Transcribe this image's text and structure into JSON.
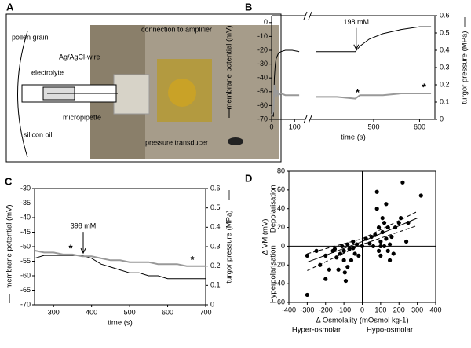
{
  "panel_labels": [
    "A",
    "B",
    "C",
    "D"
  ],
  "panel_a": {
    "labels": [
      "pollen grain",
      "electrolyte",
      "Ag/AgCl-wire",
      "micropipette",
      "silicon oil",
      "connection to amplifier",
      "pressure transducer"
    ]
  },
  "chart_data": [
    {
      "type": "line",
      "x_label": "time (s)",
      "y_label": "membrane potential (mV)",
      "y2_label": "turgor pressure (MPa)",
      "xlim": [
        0,
        630
      ],
      "x_break": [
        130,
        370
      ],
      "xticks": [
        0,
        100,
        500,
        600
      ],
      "ylim": [
        -70,
        5
      ],
      "yticks": [
        -70,
        -60,
        -50,
        -40,
        -30,
        -20,
        -10,
        0
      ],
      "y2lim": [
        0,
        0.6
      ],
      "y2ticks": [
        0,
        0.1,
        0.2,
        0.3,
        0.4,
        0.5,
        0.6
      ],
      "x": [
        0,
        8,
        12,
        16,
        20,
        25,
        30,
        40,
        60,
        90,
        120,
        250,
        375,
        420,
        460,
        470,
        490,
        520,
        560,
        600,
        625
      ],
      "series": [
        {
          "color": "#000000",
          "values": [
            -65,
            -68,
            -40,
            -30,
            -26,
            -24,
            -22,
            -21,
            -20,
            -20,
            -21,
            null,
            -21,
            -21,
            -21,
            -17,
            -12,
            -8,
            -5,
            -3,
            -3
          ]
        },
        {
          "color": "#999999",
          "axis": "y2",
          "values": [
            0.02,
            0.05,
            0.2,
            0.16,
            0.13,
            0.17,
            0.14,
            0.15,
            0.14,
            0.14,
            0.14,
            null,
            0.13,
            0.13,
            0.12,
            0.14,
            0.14,
            0.14,
            0.15,
            0.15,
            0.15
          ]
        }
      ],
      "arrow_annotation": {
        "text": "198 mM",
        "x": 462
      },
      "asterisks": [
        {
          "text": "*",
          "x": 465
        },
        {
          "text": "*",
          "x": 610
        }
      ]
    },
    {
      "type": "line",
      "x_label": "time (s)",
      "y_label": "membrane potential (mV)",
      "y2_label": "turgor pressure (MPa)",
      "xlim": [
        250,
        700
      ],
      "xticks": [
        300,
        400,
        500,
        600,
        700
      ],
      "ylim": [
        -70,
        -30
      ],
      "yticks": [
        -70,
        -65,
        -60,
        -55,
        -50,
        -45,
        -40,
        -35,
        -30
      ],
      "y2lim": [
        0,
        0.6
      ],
      "y2ticks": [
        0,
        0.1,
        0.2,
        0.3,
        0.4,
        0.5,
        0.6
      ],
      "x": [
        250,
        275,
        300,
        325,
        350,
        375,
        400,
        425,
        450,
        475,
        500,
        525,
        550,
        575,
        600,
        625,
        650,
        675,
        700
      ],
      "series": [
        {
          "color": "#000000",
          "values": [
            -54,
            -53,
            -53,
            -53,
            -53,
            -53,
            -54,
            -56,
            -57,
            -58,
            -59,
            -59,
            -60,
            -60,
            -61,
            -61,
            -61,
            -61,
            -61
          ]
        },
        {
          "color": "#999999",
          "axis": "y2",
          "values": [
            0.28,
            0.27,
            0.27,
            0.26,
            0.26,
            0.25,
            0.25,
            0.24,
            0.23,
            0.23,
            0.22,
            0.22,
            0.22,
            0.21,
            0.21,
            0.21,
            0.2,
            0.2,
            0.2
          ]
        }
      ],
      "arrow_annotation": {
        "text": "398 mM",
        "x": 378
      },
      "asterisks": [
        {
          "text": "*",
          "x": 345
        },
        {
          "text": "*",
          "x": 665
        }
      ]
    },
    {
      "type": "scatter",
      "x_label": "Δ Osmolality (mOsmol kg-1)",
      "y_label": "Δ VM (mV)",
      "annotations": [
        "Depolarisation",
        "Hyperpolarisation",
        "Hyper-osmolar",
        "Hypo-osmolar"
      ],
      "xlim": [
        -400,
        400
      ],
      "xticks": [
        -400,
        -300,
        -200,
        -100,
        0,
        100,
        200,
        300,
        400
      ],
      "ylim": [
        -60,
        80
      ],
      "yticks": [
        -60,
        -40,
        -20,
        0,
        20,
        40,
        60,
        80
      ],
      "color": "#000000",
      "x": [
        -300,
        -300,
        -250,
        -230,
        -200,
        -200,
        -180,
        -160,
        -150,
        -140,
        -130,
        -120,
        -110,
        -100,
        -100,
        -95,
        -90,
        -80,
        -80,
        -70,
        -60,
        -50,
        -50,
        -40,
        -30,
        0,
        20,
        40,
        50,
        60,
        70,
        80,
        80,
        90,
        90,
        100,
        100,
        110,
        110,
        120,
        120,
        130,
        130,
        140,
        140,
        150,
        160,
        170,
        180,
        200,
        210,
        220,
        240,
        250,
        320,
        -20,
        100,
        150
      ],
      "values": [
        -52,
        -10,
        -5,
        -20,
        -10,
        -35,
        -25,
        -5,
        -3,
        -12,
        -25,
        -8,
        0,
        -5,
        -15,
        -28,
        -37,
        -22,
        2,
        -3,
        -15,
        5,
        -2,
        -8,
        2,
        0,
        8,
        3,
        10,
        0,
        12,
        58,
        40,
        20,
        -5,
        5,
        -10,
        15,
        30,
        25,
        0,
        45,
        8,
        -5,
        20,
        2,
        10,
        -8,
        20,
        25,
        30,
        68,
        5,
        25,
        54,
        -10,
        0,
        -15
      ],
      "lines": [
        {
          "x": [
            -300,
            0,
            300
          ],
          "values": [
            -17,
            5,
            30
          ],
          "dash": false
        },
        {
          "x": [
            -300,
            0,
            300
          ],
          "values": [
            -8,
            8,
            37
          ],
          "dash": true
        },
        {
          "x": [
            -300,
            0,
            300
          ],
          "values": [
            -26,
            2,
            22
          ],
          "dash": true
        }
      ]
    }
  ]
}
